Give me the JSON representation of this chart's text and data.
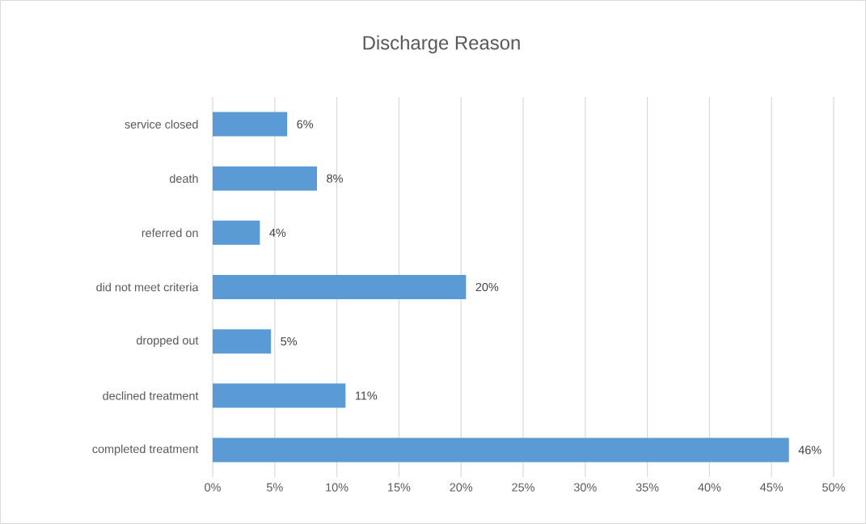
{
  "chart_data": {
    "type": "bar",
    "orientation": "horizontal",
    "title": "Discharge Reason",
    "categories": [
      "service closed",
      "death",
      "referred on",
      "did not meet criteria",
      "dropped out",
      "declined treatment",
      "completed treatment"
    ],
    "values": [
      6.0,
      8.4,
      3.8,
      20.4,
      4.7,
      10.7,
      46.4
    ],
    "value_labels": [
      "6%",
      "8%",
      "4%",
      "20%",
      "5%",
      "11%",
      "46%"
    ],
    "color": "#5b9bd5",
    "xlim": [
      0,
      50
    ],
    "xticks": [
      {
        "value": 0,
        "label": "0%"
      },
      {
        "value": 5,
        "label": "5%"
      },
      {
        "value": 10,
        "label": "10%"
      },
      {
        "value": 15,
        "label": "15%"
      },
      {
        "value": 20,
        "label": "20%"
      },
      {
        "value": 25,
        "label": "25%"
      },
      {
        "value": 30,
        "label": "30%"
      },
      {
        "value": 35,
        "label": "35%"
      },
      {
        "value": 40,
        "label": "40%"
      },
      {
        "value": 45,
        "label": "45%"
      },
      {
        "value": 50,
        "label": "50%"
      }
    ],
    "grid": "x"
  }
}
